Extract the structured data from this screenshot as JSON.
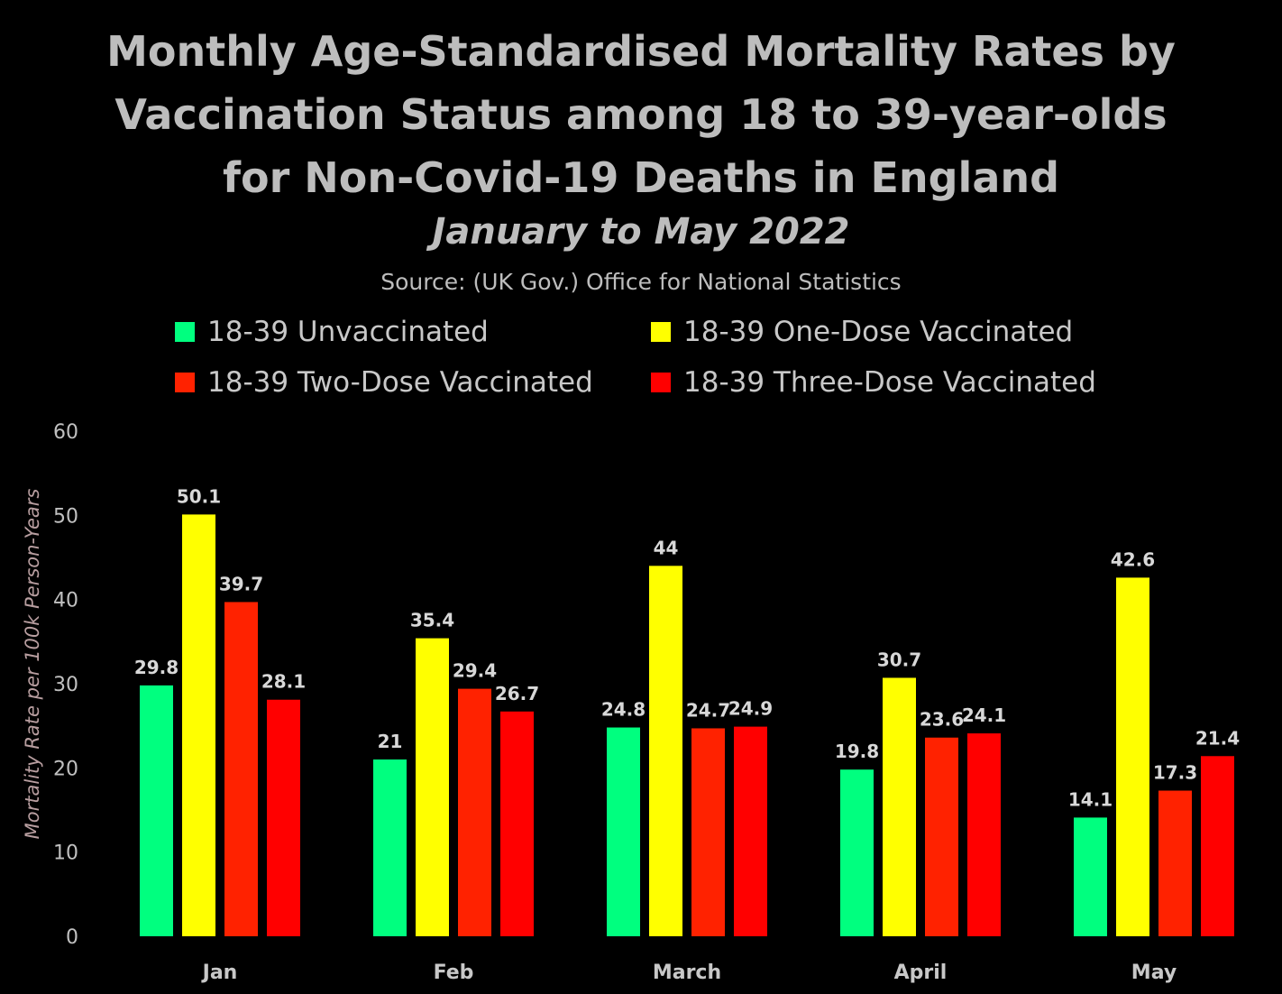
{
  "chart_data": {
    "type": "bar",
    "title_lines": [
      "Monthly Age-Standardised Mortality Rates by",
      "Vaccination Status among 18 to 39-year-olds",
      "for Non-Covid-19 Deaths in England"
    ],
    "subtitle": "January to May 2022",
    "source": "Source: (UK Gov.) Office for National Statistics",
    "xlabel": "",
    "ylabel": "Mortality Rate per 100k Person-Years",
    "ylim": [
      0,
      60
    ],
    "yticks": [
      0,
      10,
      20,
      30,
      40,
      50,
      60
    ],
    "categories": [
      "Jan",
      "Feb",
      "March",
      "April",
      "May"
    ],
    "series": [
      {
        "name": "18-39 Unvaccinated",
        "color": "#00ff7f",
        "values": [
          29.8,
          21,
          24.8,
          19.8,
          14.1
        ]
      },
      {
        "name": "18-39 One-Dose Vaccinated",
        "color": "#ffff00",
        "values": [
          50.1,
          35.4,
          44,
          30.7,
          42.6
        ]
      },
      {
        "name": "18-39 Two-Dose Vaccinated",
        "color": "#ff2200",
        "values": [
          39.7,
          29.4,
          24.7,
          23.6,
          17.3
        ]
      },
      {
        "name": "18-39 Three-Dose Vaccinated",
        "color": "#ff0000",
        "values": [
          28.1,
          26.7,
          24.9,
          24.1,
          21.4
        ]
      }
    ],
    "grid": false,
    "legend_position": "top"
  }
}
